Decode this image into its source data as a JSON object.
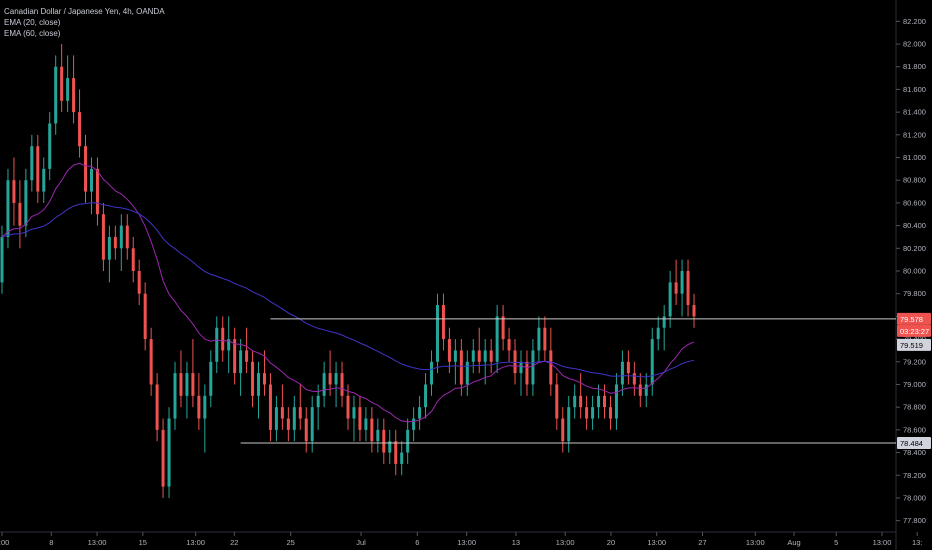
{
  "legend": {
    "symbol": "Canadian Dollar / Japanese Yen, 4h, OANDA",
    "ema20": "EMA (20, close)",
    "ema60": "EMA (60, close)"
  },
  "colors": {
    "up": "#26a69a",
    "down": "#ef5350",
    "ema20": "#9c27b0",
    "ema60": "#3f35c8",
    "level": "#c8c8c8",
    "arrow": "#ffffff",
    "price_badge": "#ef5350"
  },
  "chart_data": {
    "type": "candlestick",
    "ylim": [
      77.7,
      82.3
    ],
    "y_ticks": [
      "82.200",
      "82.000",
      "81.800",
      "81.600",
      "81.400",
      "81.200",
      "81.000",
      "80.800",
      "80.600",
      "80.400",
      "80.200",
      "80.000",
      "79.800",
      "79.600",
      "79.400",
      "79.200",
      "79.000",
      "78.800",
      "78.600",
      "78.400",
      "78.200",
      "78.000",
      "77.800"
    ],
    "x_ticks": [
      "3:00",
      "8",
      "13:00",
      "15",
      "13:00",
      "22",
      "25",
      "Jul",
      "6",
      "13:00",
      "13",
      "13:00",
      "20",
      "13:00",
      "27",
      "13:00",
      "Aug",
      "5",
      "13:00",
      "13:"
    ],
    "x_range": [
      0,
      250
    ],
    "x_tick_positions": [
      0,
      14,
      27,
      40,
      55,
      66,
      82,
      102,
      118,
      132,
      146,
      160,
      173,
      186,
      199,
      214,
      225,
      237,
      250,
      260
    ],
    "horizontal_levels": [
      {
        "price": 79.578,
        "label": "79.578",
        "from": 45
      },
      {
        "price": 78.484,
        "label": "78.484",
        "from": 40
      }
    ],
    "price_badges": [
      {
        "label": "79.578",
        "style": "current"
      },
      {
        "label": "03:23:27",
        "style": "countdown"
      },
      {
        "label": "79.519",
        "style": "ema"
      },
      {
        "label": "78.484",
        "style": "level"
      }
    ],
    "projection_arrow": [
      [
        195,
        79.62
      ],
      [
        198,
        79.72
      ],
      [
        201,
        79.6
      ],
      [
        204,
        79.42
      ],
      [
        207,
        79.55
      ],
      [
        211,
        79.85
      ],
      [
        215,
        80.15
      ]
    ],
    "candles": [
      [
        79.9,
        80.4,
        79.8,
        80.3
      ],
      [
        80.3,
        80.9,
        80.2,
        80.8
      ],
      [
        80.8,
        81.0,
        80.4,
        80.6
      ],
      [
        80.6,
        80.8,
        80.2,
        80.4
      ],
      [
        80.4,
        80.9,
        80.3,
        80.8
      ],
      [
        80.8,
        81.2,
        80.7,
        81.1
      ],
      [
        81.1,
        81.2,
        80.6,
        80.7
      ],
      [
        80.7,
        81.0,
        80.6,
        80.9
      ],
      [
        80.9,
        81.4,
        80.8,
        81.3
      ],
      [
        81.3,
        81.9,
        81.2,
        81.8
      ],
      [
        81.8,
        82.0,
        81.4,
        81.5
      ],
      [
        81.5,
        81.9,
        81.4,
        81.7
      ],
      [
        81.7,
        81.9,
        81.3,
        81.4
      ],
      [
        81.4,
        81.6,
        81.0,
        81.1
      ],
      [
        81.1,
        81.2,
        80.6,
        80.7
      ],
      [
        80.7,
        81.0,
        80.5,
        80.9
      ],
      [
        80.9,
        81.0,
        80.4,
        80.5
      ],
      [
        80.5,
        80.6,
        80.0,
        80.1
      ],
      [
        80.1,
        80.4,
        79.9,
        80.3
      ],
      [
        80.3,
        80.4,
        80.1,
        80.2
      ],
      [
        80.2,
        80.5,
        80.0,
        80.4
      ],
      [
        80.4,
        80.5,
        80.1,
        80.2
      ],
      [
        80.2,
        80.3,
        79.9,
        80.0
      ],
      [
        80.0,
        80.1,
        79.7,
        79.8
      ],
      [
        79.8,
        79.9,
        79.3,
        79.4
      ],
      [
        79.4,
        79.5,
        78.9,
        79.0
      ],
      [
        79.0,
        79.1,
        78.5,
        78.6
      ],
      [
        78.6,
        78.7,
        78.0,
        78.1
      ],
      [
        78.1,
        78.8,
        78.0,
        78.7
      ],
      [
        78.7,
        79.2,
        78.6,
        79.1
      ],
      [
        79.1,
        79.3,
        78.8,
        78.9
      ],
      [
        78.9,
        79.2,
        78.7,
        79.1
      ],
      [
        79.1,
        79.4,
        78.8,
        78.9
      ],
      [
        78.9,
        79.1,
        78.6,
        78.7
      ],
      [
        78.7,
        79.0,
        78.4,
        78.9
      ],
      [
        78.9,
        79.3,
        78.8,
        79.2
      ],
      [
        79.2,
        79.6,
        79.1,
        79.5
      ],
      [
        79.5,
        79.6,
        79.2,
        79.3
      ],
      [
        79.3,
        79.6,
        79.1,
        79.4
      ],
      [
        79.4,
        79.5,
        79.0,
        79.1
      ],
      [
        79.1,
        79.4,
        78.9,
        79.3
      ],
      [
        79.3,
        79.5,
        79.1,
        79.2
      ],
      [
        79.2,
        79.3,
        78.8,
        78.9
      ],
      [
        78.9,
        79.2,
        78.7,
        79.1
      ],
      [
        79.1,
        79.3,
        78.9,
        79.0
      ],
      [
        79.0,
        79.1,
        78.5,
        78.6
      ],
      [
        78.6,
        78.9,
        78.5,
        78.8
      ],
      [
        78.8,
        79.0,
        78.6,
        78.7
      ],
      [
        78.7,
        78.8,
        78.5,
        78.6
      ],
      [
        78.6,
        78.9,
        78.5,
        78.8
      ],
      [
        78.8,
        79.0,
        78.6,
        78.7
      ],
      [
        78.7,
        78.8,
        78.4,
        78.5
      ],
      [
        78.5,
        78.9,
        78.4,
        78.8
      ],
      [
        78.8,
        79.0,
        78.6,
        78.9
      ],
      [
        78.9,
        79.2,
        78.8,
        79.1
      ],
      [
        79.1,
        79.3,
        78.9,
        79.0
      ],
      [
        79.0,
        79.2,
        78.8,
        79.1
      ],
      [
        79.1,
        79.2,
        78.8,
        78.9
      ],
      [
        78.9,
        79.0,
        78.6,
        78.7
      ],
      [
        78.7,
        78.9,
        78.5,
        78.8
      ],
      [
        78.8,
        78.9,
        78.5,
        78.6
      ],
      [
        78.6,
        78.8,
        78.5,
        78.7
      ],
      [
        78.7,
        78.8,
        78.4,
        78.5
      ],
      [
        78.5,
        78.7,
        78.4,
        78.6
      ],
      [
        78.6,
        78.7,
        78.3,
        78.4
      ],
      [
        78.4,
        78.6,
        78.3,
        78.5
      ],
      [
        78.5,
        78.6,
        78.2,
        78.3
      ],
      [
        78.3,
        78.5,
        78.2,
        78.4
      ],
      [
        78.4,
        78.7,
        78.3,
        78.6
      ],
      [
        78.6,
        78.8,
        78.5,
        78.7
      ],
      [
        78.7,
        78.9,
        78.6,
        78.8
      ],
      [
        78.8,
        79.1,
        78.7,
        79.0
      ],
      [
        79.0,
        79.3,
        78.9,
        79.2
      ],
      [
        79.2,
        79.8,
        79.1,
        79.7
      ],
      [
        79.7,
        79.8,
        79.3,
        79.4
      ],
      [
        79.4,
        79.5,
        79.1,
        79.2
      ],
      [
        79.2,
        79.4,
        79.0,
        79.3
      ],
      [
        79.3,
        79.4,
        78.9,
        79.0
      ],
      [
        79.0,
        79.3,
        78.9,
        79.2
      ],
      [
        79.2,
        79.4,
        79.1,
        79.3
      ],
      [
        79.3,
        79.5,
        79.1,
        79.2
      ],
      [
        79.2,
        79.4,
        79.0,
        79.3
      ],
      [
        79.3,
        79.4,
        79.1,
        79.2
      ],
      [
        79.2,
        79.7,
        79.1,
        79.6
      ],
      [
        79.6,
        79.7,
        79.3,
        79.4
      ],
      [
        79.4,
        79.5,
        79.2,
        79.3
      ],
      [
        79.3,
        79.4,
        79.0,
        79.1
      ],
      [
        79.1,
        79.3,
        78.9,
        79.2
      ],
      [
        79.2,
        79.3,
        78.9,
        79.0
      ],
      [
        79.0,
        79.4,
        78.9,
        79.3
      ],
      [
        79.3,
        79.6,
        79.2,
        79.5
      ],
      [
        79.5,
        79.6,
        79.2,
        79.3
      ],
      [
        79.3,
        79.5,
        78.9,
        79.0
      ],
      [
        79.0,
        79.1,
        78.6,
        78.7
      ],
      [
        78.7,
        78.8,
        78.4,
        78.5
      ],
      [
        78.5,
        78.9,
        78.4,
        78.8
      ],
      [
        78.8,
        79.0,
        78.7,
        78.9
      ],
      [
        78.9,
        79.1,
        78.7,
        78.8
      ],
      [
        78.8,
        78.9,
        78.6,
        78.7
      ],
      [
        78.7,
        78.9,
        78.6,
        78.8
      ],
      [
        78.8,
        79.0,
        78.7,
        78.9
      ],
      [
        78.9,
        79.0,
        78.7,
        78.8
      ],
      [
        78.8,
        78.9,
        78.6,
        78.7
      ],
      [
        78.7,
        79.1,
        78.6,
        79.0
      ],
      [
        79.0,
        79.3,
        78.9,
        79.2
      ],
      [
        79.2,
        79.3,
        79.0,
        79.1
      ],
      [
        79.1,
        79.2,
        78.9,
        79.0
      ],
      [
        79.0,
        79.1,
        78.8,
        78.9
      ],
      [
        78.9,
        79.1,
        78.8,
        79.0
      ],
      [
        79.0,
        79.5,
        78.9,
        79.4
      ],
      [
        79.4,
        79.6,
        79.3,
        79.5
      ],
      [
        79.5,
        79.7,
        79.3,
        79.6
      ],
      [
        79.6,
        80.0,
        79.5,
        79.9
      ],
      [
        79.9,
        80.1,
        79.7,
        79.8
      ],
      [
        79.8,
        80.1,
        79.6,
        80.0
      ],
      [
        80.0,
        80.1,
        79.6,
        79.7
      ],
      [
        79.7,
        79.8,
        79.5,
        79.6
      ]
    ]
  }
}
